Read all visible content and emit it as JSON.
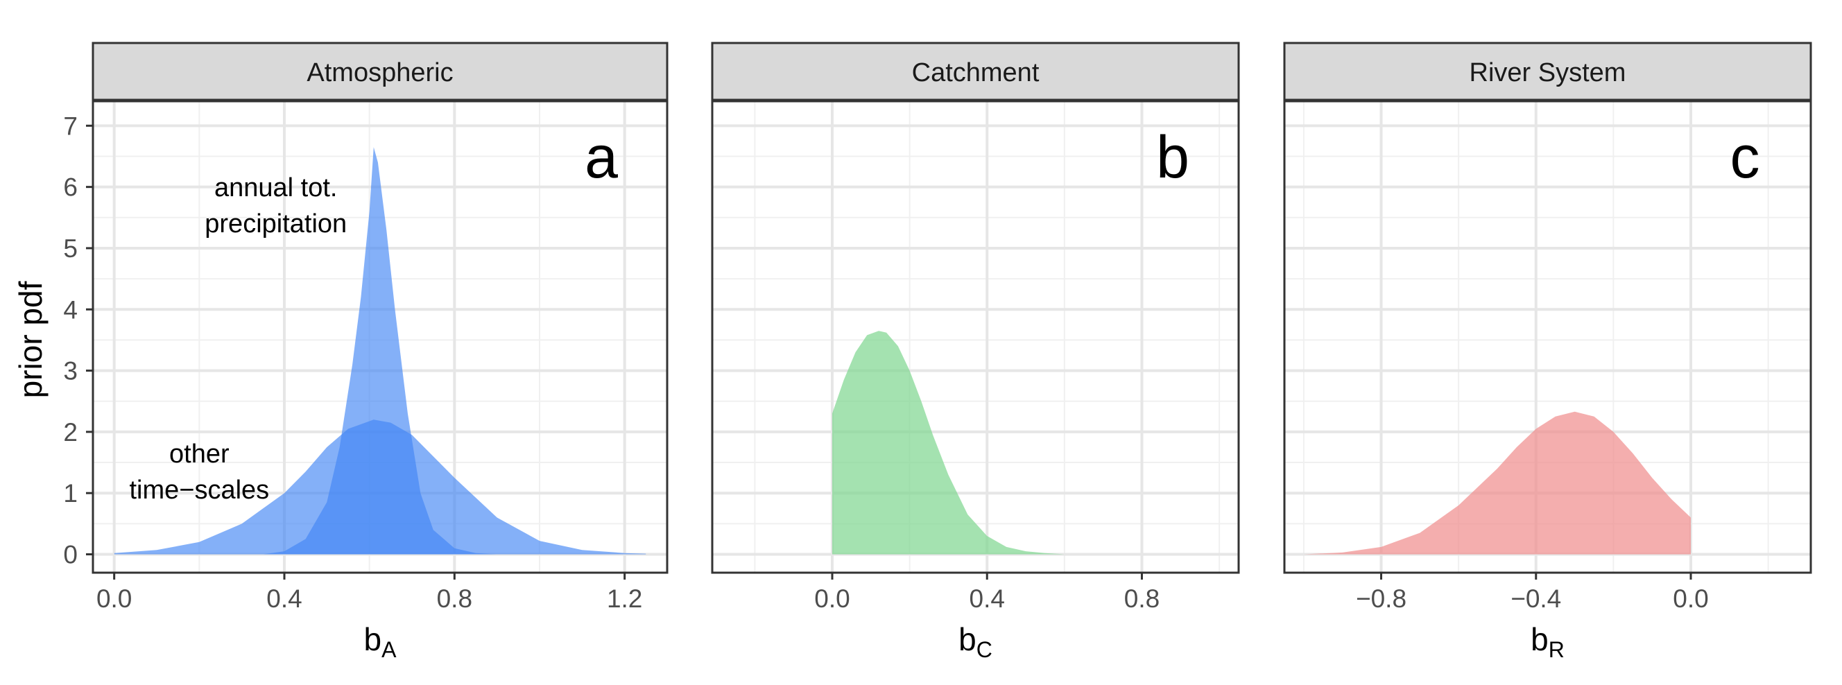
{
  "figure": {
    "ylabel": "prior pdf"
  },
  "chart_data": [
    {
      "type": "area",
      "panel_title": "Atmospheric",
      "panel_letter": "a",
      "xlabel": "b",
      "xlabel_sub": "A",
      "xlim": [
        -0.05,
        1.3
      ],
      "ylim": [
        -0.3,
        7.4
      ],
      "x_ticks": [
        0.0,
        0.4,
        0.8,
        1.2
      ],
      "x_tick_labels": [
        "0.0",
        "0.4",
        "0.8",
        "1.2"
      ],
      "y_ticks": [
        0,
        1,
        2,
        3,
        4,
        5,
        6,
        7
      ],
      "y_tick_labels": [
        "0",
        "1",
        "2",
        "3",
        "4",
        "5",
        "6",
        "7"
      ],
      "grid": true,
      "series": [
        {
          "color": "#4285f4",
          "opacity": 0.65,
          "x": [
            0.0,
            0.1,
            0.2,
            0.3,
            0.4,
            0.45,
            0.5,
            0.55,
            0.61,
            0.65,
            0.7,
            0.75,
            0.8,
            0.9,
            1.0,
            1.1,
            1.2,
            1.25
          ],
          "values": [
            0.02,
            0.07,
            0.2,
            0.5,
            1.0,
            1.35,
            1.75,
            2.05,
            2.2,
            2.15,
            1.95,
            1.6,
            1.25,
            0.6,
            0.22,
            0.07,
            0.02,
            0.01
          ]
        },
        {
          "color": "#4285f4",
          "opacity": 0.65,
          "x": [
            0.35,
            0.4,
            0.45,
            0.5,
            0.53,
            0.56,
            0.58,
            0.6,
            0.61,
            0.62,
            0.64,
            0.66,
            0.69,
            0.72,
            0.75,
            0.8,
            0.85,
            0.9
          ],
          "values": [
            0.0,
            0.05,
            0.25,
            0.85,
            1.75,
            3.1,
            4.2,
            5.6,
            6.65,
            6.4,
            5.3,
            4.0,
            2.3,
            1.0,
            0.4,
            0.1,
            0.02,
            0.0
          ]
        }
      ],
      "annotations": [
        {
          "lines": [
            "annual tot.",
            "precipitation"
          ],
          "x": 0.38,
          "y": 5.85
        },
        {
          "lines": [
            "other",
            "time−scales"
          ],
          "x": 0.2,
          "y": 1.5
        }
      ]
    },
    {
      "type": "area",
      "panel_title": "Catchment",
      "panel_letter": "b",
      "xlabel": "b",
      "xlabel_sub": "C",
      "xlim": [
        -0.31,
        1.05
      ],
      "ylim": [
        -0.3,
        7.4
      ],
      "x_ticks": [
        0.0,
        0.4,
        0.8
      ],
      "x_tick_labels": [
        "0.0",
        "0.4",
        "0.8"
      ],
      "y_ticks": [
        0,
        1,
        2,
        3,
        4,
        5,
        6,
        7
      ],
      "grid": true,
      "series": [
        {
          "color": "#7dd58f",
          "opacity": 0.7,
          "x": [
            0.0,
            0.0,
            0.03,
            0.06,
            0.09,
            0.12,
            0.14,
            0.17,
            0.2,
            0.23,
            0.26,
            0.3,
            0.35,
            0.4,
            0.45,
            0.5,
            0.55,
            0.6
          ],
          "values": [
            0.0,
            2.3,
            2.85,
            3.3,
            3.58,
            3.65,
            3.62,
            3.4,
            3.0,
            2.5,
            1.95,
            1.3,
            0.65,
            0.3,
            0.12,
            0.05,
            0.02,
            0.0
          ]
        }
      ]
    },
    {
      "type": "area",
      "panel_title": "River System",
      "panel_letter": "c",
      "xlabel": "b",
      "xlabel_sub": "R",
      "xlim": [
        -1.05,
        0.31
      ],
      "ylim": [
        -0.3,
        7.4
      ],
      "x_ticks": [
        -0.8,
        -0.4,
        0.0
      ],
      "x_tick_labels": [
        "−0.8",
        "−0.4",
        "0.0"
      ],
      "y_ticks": [
        0,
        1,
        2,
        3,
        4,
        5,
        6,
        7
      ],
      "grid": true,
      "series": [
        {
          "color": "#f08c8c",
          "opacity": 0.7,
          "x": [
            -1.0,
            -0.9,
            -0.8,
            -0.7,
            -0.6,
            -0.5,
            -0.45,
            -0.4,
            -0.35,
            -0.3,
            -0.25,
            -0.2,
            -0.15,
            -0.1,
            -0.05,
            0.0,
            0.0
          ],
          "values": [
            0.0,
            0.03,
            0.12,
            0.35,
            0.8,
            1.4,
            1.75,
            2.05,
            2.25,
            2.33,
            2.25,
            2.0,
            1.65,
            1.25,
            0.9,
            0.6,
            0.0
          ]
        }
      ]
    }
  ]
}
